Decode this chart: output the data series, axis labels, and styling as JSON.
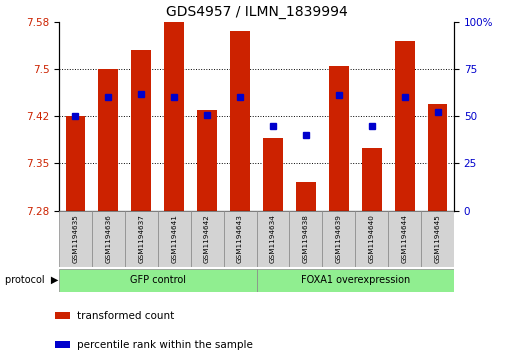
{
  "title": "GDS4957 / ILMN_1839994",
  "samples": [
    "GSM1194635",
    "GSM1194636",
    "GSM1194637",
    "GSM1194641",
    "GSM1194642",
    "GSM1194643",
    "GSM1194634",
    "GSM1194638",
    "GSM1194639",
    "GSM1194640",
    "GSM1194644",
    "GSM1194645"
  ],
  "groups": [
    {
      "label": "GFP control",
      "color": "#90EE90",
      "start": 0,
      "end": 6
    },
    {
      "label": "FOXA1 overexpression",
      "color": "#90EE90",
      "start": 6,
      "end": 12
    }
  ],
  "red_values": [
    7.425,
    7.5,
    7.53,
    7.575,
    7.435,
    7.56,
    7.39,
    7.32,
    7.505,
    7.375,
    7.545,
    7.445
  ],
  "blue_values": [
    7.425,
    7.455,
    7.46,
    7.455,
    7.427,
    7.455,
    7.41,
    7.395,
    7.458,
    7.41,
    7.455,
    7.432
  ],
  "ylim_left": [
    7.275,
    7.575
  ],
  "ylim_right": [
    0,
    100
  ],
  "yticks_left": [
    7.275,
    7.35,
    7.425,
    7.5,
    7.575
  ],
  "yticks_right": [
    0,
    25,
    50,
    75,
    100
  ],
  "bar_color": "#CC2200",
  "dot_color": "#0000CC",
  "xlabel_color": "#CC2200",
  "ylabel_right_color": "#0000CC",
  "legend": [
    {
      "label": "transformed count",
      "color": "#CC2200"
    },
    {
      "label": "percentile rank within the sample",
      "color": "#0000CC"
    }
  ],
  "bar_bottom": 7.275,
  "bar_width": 0.6
}
